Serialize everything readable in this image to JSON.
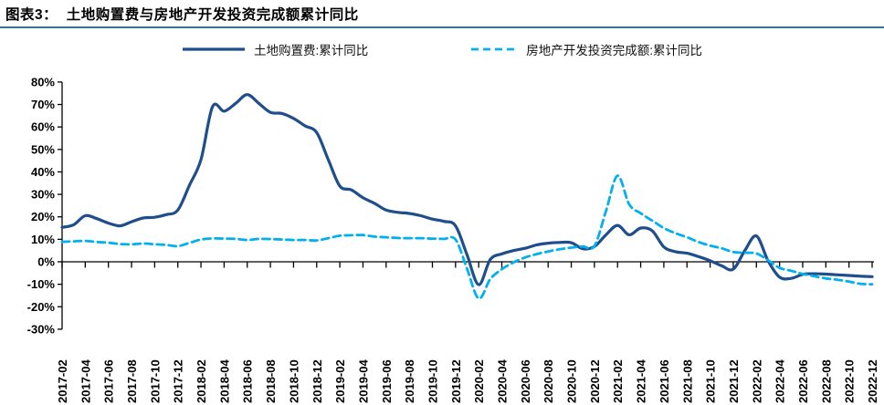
{
  "header": {
    "title": "图表3：  土地购置费与房地产开发投资完成额累计同比"
  },
  "legend": [
    {
      "label": "土地购置费:累计同比",
      "style": "solid",
      "color": "#1F4E8C"
    },
    {
      "label": "房地产开发投资完成额:累计同比",
      "style": "dashed",
      "color": "#00B0F0"
    }
  ],
  "colors": {
    "title_underline": "#2E74B5",
    "axis": "#000000",
    "background": "#FFFFFF"
  },
  "chart_data": {
    "type": "line",
    "title": "图表3： 土地购置费与房地产开发投资完成额累计同比",
    "xlabel": "",
    "ylabel": "",
    "ylim": [
      -30,
      80
    ],
    "y_tick_step": 10,
    "grid": false,
    "legend_position": "top",
    "y_tick_labels": [
      "80%",
      "70%",
      "60%",
      "50%",
      "40%",
      "30%",
      "20%",
      "10%",
      "0%",
      "-10%",
      "-20%",
      "-30%"
    ],
    "x_tick_labels": [
      "2017-02",
      "2017-04",
      "2017-06",
      "2017-08",
      "2017-10",
      "2017-12",
      "2018-02",
      "2018-04",
      "2018-06",
      "2018-08",
      "2018-10",
      "2018-12",
      "2019-02",
      "2019-04",
      "2019-06",
      "2019-08",
      "2019-10",
      "2019-12",
      "2020-02",
      "2020-04",
      "2020-06",
      "2020-08",
      "2020-10",
      "2020-12",
      "2021-02",
      "2021-04",
      "2021-06",
      "2021-08",
      "2021-10",
      "2021-12",
      "2022-02",
      "2022-04",
      "2022-06",
      "2022-08",
      "2022-10",
      "2022-12"
    ],
    "x": [
      "2017-02",
      "2017-03",
      "2017-04",
      "2017-05",
      "2017-06",
      "2017-07",
      "2017-08",
      "2017-09",
      "2017-10",
      "2017-11",
      "2017-12",
      "2018-01",
      "2018-02",
      "2018-03",
      "2018-04",
      "2018-05",
      "2018-06",
      "2018-07",
      "2018-08",
      "2018-09",
      "2018-10",
      "2018-11",
      "2018-12",
      "2019-01",
      "2019-02",
      "2019-03",
      "2019-04",
      "2019-05",
      "2019-06",
      "2019-07",
      "2019-08",
      "2019-09",
      "2019-10",
      "2019-11",
      "2019-12",
      "2020-01",
      "2020-02",
      "2020-03",
      "2020-04",
      "2020-05",
      "2020-06",
      "2020-07",
      "2020-08",
      "2020-09",
      "2020-10",
      "2020-11",
      "2020-12",
      "2021-01",
      "2021-02",
      "2021-03",
      "2021-04",
      "2021-05",
      "2021-06",
      "2021-07",
      "2021-08",
      "2021-09",
      "2021-10",
      "2021-11",
      "2021-12",
      "2022-01",
      "2022-02",
      "2022-03",
      "2022-04",
      "2022-05",
      "2022-06",
      "2022-07",
      "2022-08",
      "2022-09",
      "2022-10",
      "2022-11",
      "2022-12"
    ],
    "series": [
      {
        "name": "土地购置费:累计同比",
        "color": "#1F4E8C",
        "line_style": "solid",
        "values": [
          15.3,
          16.5,
          20.5,
          19.2,
          17.2,
          16.0,
          17.8,
          19.5,
          19.8,
          21.0,
          23.0,
          34.0,
          45.5,
          69.0,
          67.0,
          70.5,
          74.4,
          70.5,
          66.5,
          66.0,
          63.8,
          60.5,
          57.5,
          45.5,
          33.7,
          32.0,
          28.5,
          26.0,
          23.0,
          22.0,
          21.5,
          20.5,
          19.0,
          18.0,
          16.0,
          3.0,
          -10.2,
          1.0,
          3.5,
          5.0,
          6.0,
          7.5,
          8.3,
          8.6,
          8.5,
          5.8,
          6.8,
          12.0,
          16.2,
          12.0,
          15.0,
          13.8,
          6.6,
          4.5,
          3.8,
          2.3,
          0.5,
          -1.8,
          -3.3,
          5.0,
          11.5,
          0.5,
          -6.8,
          -7.4,
          -5.6,
          -5.3,
          -5.5,
          -5.8,
          -6.1,
          -6.4,
          -6.6
        ]
      },
      {
        "name": "房地产开发投资完成额:累计同比",
        "color": "#00B0F0",
        "line_style": "dashed",
        "values": [
          8.9,
          9.1,
          9.3,
          8.8,
          8.5,
          7.9,
          7.8,
          8.1,
          7.8,
          7.5,
          7.0,
          8.4,
          9.9,
          10.4,
          10.3,
          10.2,
          9.7,
          10.2,
          10.1,
          9.9,
          9.7,
          9.7,
          9.5,
          10.5,
          11.6,
          11.8,
          11.9,
          11.2,
          10.9,
          10.6,
          10.5,
          10.5,
          10.3,
          10.2,
          9.9,
          -3.2,
          -16.3,
          -7.7,
          -3.3,
          -0.3,
          1.9,
          3.4,
          4.6,
          5.6,
          6.3,
          6.8,
          7.0,
          22.6,
          38.3,
          25.6,
          21.6,
          18.3,
          15.0,
          12.7,
          10.9,
          8.8,
          7.2,
          6.0,
          4.4,
          4.0,
          3.7,
          0.7,
          -2.7,
          -4.0,
          -5.4,
          -6.4,
          -7.4,
          -8.0,
          -8.8,
          -9.8,
          -10.0
        ]
      }
    ]
  }
}
